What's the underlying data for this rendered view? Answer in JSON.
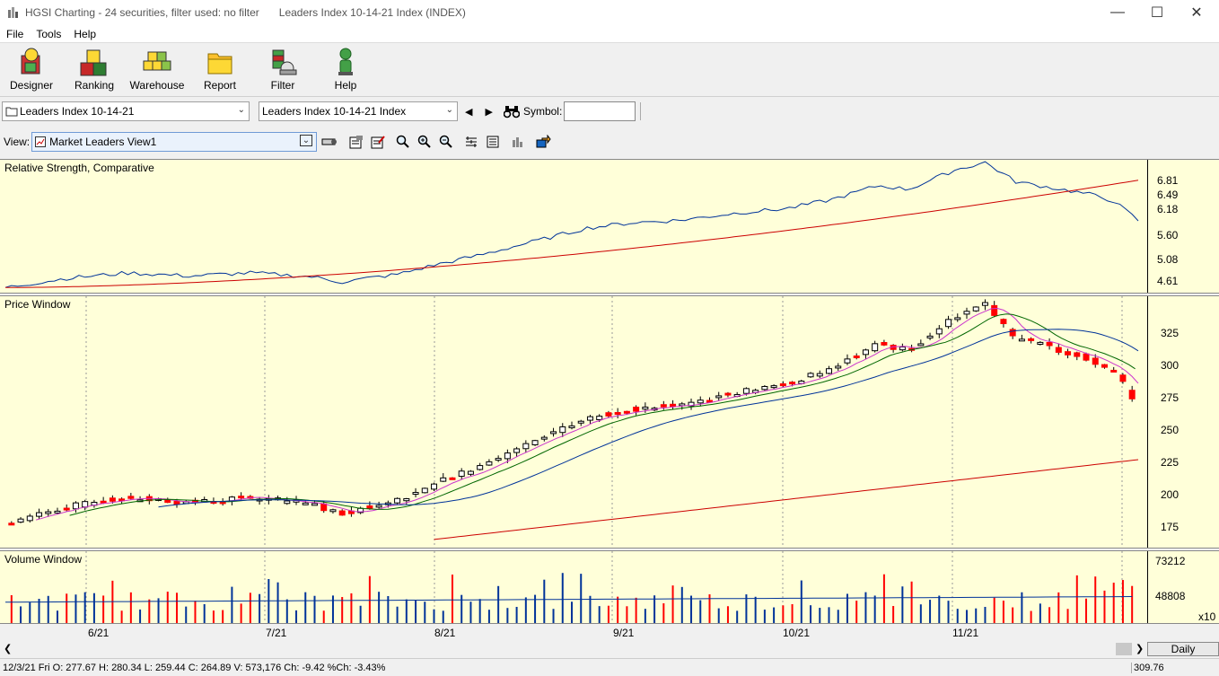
{
  "window": {
    "title": "HGSI Charting - 24 securities, filter used: no filter",
    "subtitle": "Leaders Index 10-14-21 Index (INDEX)",
    "minimize": "—",
    "maximize": "☐",
    "close": "✕"
  },
  "menu": {
    "items": [
      "File",
      "Tools",
      "Help"
    ]
  },
  "toolbar": {
    "buttons": [
      {
        "label": "Designer",
        "icon": "designer-icon"
      },
      {
        "label": "Ranking",
        "icon": "ranking-icon"
      },
      {
        "label": "Warehouse",
        "icon": "warehouse-icon"
      },
      {
        "label": "Report",
        "icon": "report-icon"
      },
      {
        "label": "Filter",
        "icon": "filter-icon"
      },
      {
        "label": "Help",
        "icon": "help-icon"
      }
    ]
  },
  "selectors": {
    "group": "Leaders Index 10-14-21",
    "security": "Leaders Index 10-14-21 Index",
    "symbol_label": "Symbol:",
    "symbol_value": ""
  },
  "view": {
    "label": "View:",
    "value": "Market Leaders View1"
  },
  "panels": {
    "rs": {
      "title": "Relative Strength, Comparative",
      "ticks": [
        "6.81",
        "6.49",
        "6.18",
        "5.60",
        "5.08",
        "4.61"
      ]
    },
    "price": {
      "title": "Price Window",
      "ticks": [
        "325",
        "300",
        "275",
        "250",
        "225",
        "200",
        "175"
      ]
    },
    "volume": {
      "title": "Volume Window",
      "ticks": [
        "73212",
        "48808"
      ],
      "multiplier": "x10"
    }
  },
  "xaxis": {
    "labels": [
      "6/21",
      "7/21",
      "8/21",
      "9/21",
      "10/21",
      "11/21"
    ]
  },
  "period": "Daily",
  "status": {
    "info": "12/3/21 Fri O: 277.67 H: 280.34 L: 259.44 C: 264.89 V: 573,176 Ch: -9.42 %Ch: -3.43%",
    "value": "309.76"
  },
  "colors": {
    "panel_bg": "#ffffd9",
    "up": "#ffffff",
    "down": "#ff0000",
    "ma_red": "#cc0000",
    "ma_blue": "#003399",
    "ma_green": "#006600",
    "ma_magenta": "#cc33cc"
  },
  "chart_data": {
    "type": "candlestick",
    "close_start": 178,
    "close_end": 264.89,
    "price_range": [
      160,
      345
    ],
    "rs_range": [
      4.45,
      7.05
    ],
    "volume_max": 85000
  }
}
